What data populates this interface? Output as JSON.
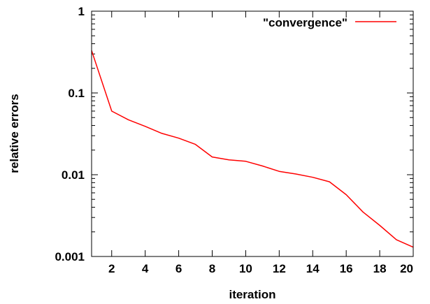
{
  "chart_data": {
    "type": "line",
    "title": "",
    "xlabel": "iteration",
    "ylabel": "relative errors",
    "xlim": [
      0.8,
      20
    ],
    "ylim": [
      0.001,
      1
    ],
    "yscale": "log",
    "grid": false,
    "legend_position": "top-right",
    "x_ticks": [
      2,
      4,
      6,
      8,
      10,
      12,
      14,
      16,
      18,
      20
    ],
    "x_tick_labels": [
      "2",
      "4",
      "6",
      "8",
      "10",
      "12",
      "14",
      "16",
      "18",
      "20"
    ],
    "y_ticks": [
      0.001,
      0.01,
      0.1,
      1
    ],
    "y_tick_labels": [
      "0.001",
      "0.01",
      "0.1",
      "1"
    ],
    "series": [
      {
        "name": "\"convergence\"",
        "color": "#ff0000",
        "x": [
          0.8,
          2,
          3,
          4,
          5,
          6,
          7,
          8,
          9,
          10,
          11,
          12,
          13,
          14,
          15,
          16,
          17,
          18,
          19,
          20
        ],
        "y": [
          0.33,
          0.06,
          0.047,
          0.039,
          0.032,
          0.028,
          0.0235,
          0.0165,
          0.0152,
          0.0146,
          0.0128,
          0.011,
          0.0102,
          0.0093,
          0.0082,
          0.0057,
          0.0035,
          0.0024,
          0.0016,
          0.0013
        ]
      }
    ]
  }
}
